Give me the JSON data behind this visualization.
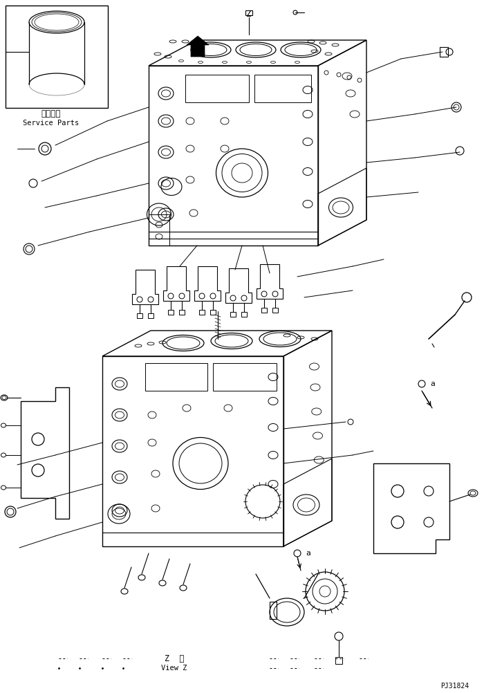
{
  "background_color": "#ffffff",
  "line_color": "#000000",
  "fig_width": 7.0,
  "fig_height": 10.02,
  "dpi": 100,
  "service_parts_text_jp": "補給専用",
  "service_parts_text_en": "Service Parts",
  "view_z_text_jp": "Z  視",
  "view_z_text_en": "View Z",
  "part_number": "PJ31824"
}
